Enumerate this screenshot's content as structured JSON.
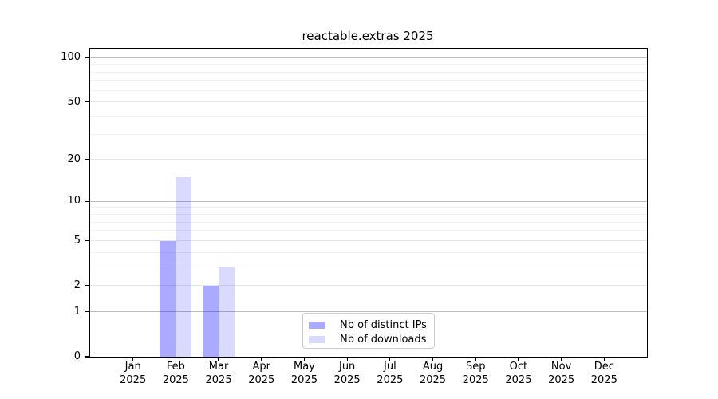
{
  "chart_data": {
    "type": "bar",
    "title": "reactable.extras 2025",
    "categories": [
      "Jan",
      "Feb",
      "Mar",
      "Apr",
      "May",
      "Jun",
      "Jul",
      "Aug",
      "Sep",
      "Oct",
      "Nov",
      "Dec"
    ],
    "xtick_year": "2025",
    "series": [
      {
        "name": "Nb of distinct IPs",
        "color": "rgba(0,0,255,0.335)",
        "values": [
          0,
          5,
          2,
          0,
          0,
          0,
          0,
          0,
          0,
          0,
          0,
          0
        ]
      },
      {
        "name": "Nb of downloads",
        "color": "rgba(0,0,255,0.145)",
        "values": [
          0,
          15,
          3,
          0,
          0,
          0,
          0,
          0,
          0,
          0,
          0,
          0
        ]
      }
    ],
    "y_scale": "log1p",
    "ylim": [
      0,
      115
    ],
    "y_ticks": [
      0,
      1,
      2,
      5,
      10,
      20,
      50,
      100
    ],
    "y_minor_gridlines": [
      3,
      4,
      6,
      7,
      8,
      9,
      30,
      40,
      60,
      70,
      80,
      90
    ],
    "y_emphasized_gridlines": [
      1,
      10,
      100
    ],
    "grid": true,
    "legend_position": "lower center",
    "gridline_colors": {
      "emphasized": "#bdbdbd",
      "major": "#e7e7e7",
      "minor": "#f1f1f1"
    }
  }
}
